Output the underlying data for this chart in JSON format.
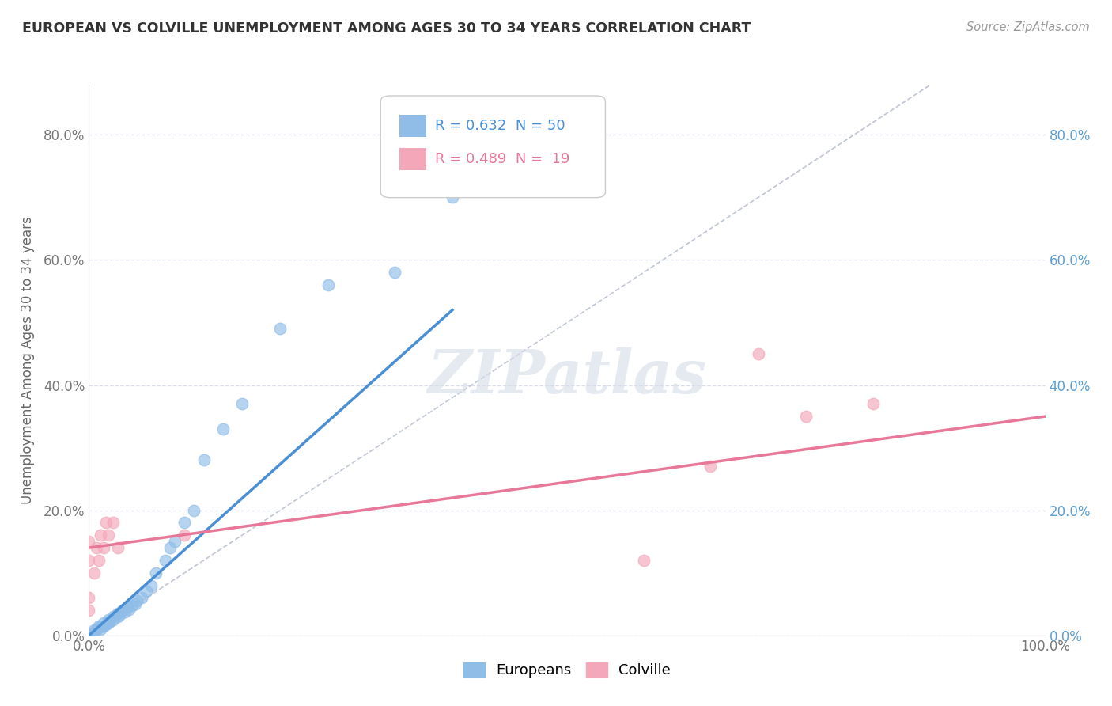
{
  "title": "EUROPEAN VS COLVILLE UNEMPLOYMENT AMONG AGES 30 TO 34 YEARS CORRELATION CHART",
  "source": "Source: ZipAtlas.com",
  "ylabel": "Unemployment Among Ages 30 to 34 years",
  "xlim": [
    0,
    1.0
  ],
  "ylim": [
    0,
    0.88
  ],
  "yticks": [
    0.0,
    0.2,
    0.4,
    0.6,
    0.8
  ],
  "ytick_labels": [
    "0.0%",
    "20.0%",
    "40.0%",
    "60.0%",
    "80.0%"
  ],
  "xtick_labels_left": "0.0%",
  "xtick_labels_right": "100.0%",
  "europeans_color": "#8fbde8",
  "colville_color": "#f4a7b9",
  "trendline_european_color": "#4a8fd4",
  "trendline_colville_color": "#e8789a",
  "diag_line_color": "#b0b8c8",
  "background_color": "#ffffff",
  "grid_color": "#d8dde8",
  "right_tick_color": "#5a9fd4",
  "watermark": "ZIPatlas",
  "europeans_x": [
    0.0,
    0.0,
    0.0,
    0.0,
    0.0,
    0.0,
    0.0,
    0.0,
    0.0,
    0.0,
    0.005,
    0.005,
    0.008,
    0.01,
    0.01,
    0.012,
    0.015,
    0.015,
    0.018,
    0.02,
    0.02,
    0.022,
    0.025,
    0.025,
    0.03,
    0.03,
    0.032,
    0.035,
    0.038,
    0.04,
    0.042,
    0.045,
    0.048,
    0.05,
    0.055,
    0.06,
    0.065,
    0.07,
    0.08,
    0.085,
    0.09,
    0.1,
    0.11,
    0.12,
    0.14,
    0.16,
    0.2,
    0.25,
    0.32,
    0.38
  ],
  "europeans_y": [
    0.0,
    0.0,
    0.0,
    0.0,
    0.0,
    0.0,
    0.0,
    0.0,
    0.0,
    0.002,
    0.005,
    0.008,
    0.01,
    0.012,
    0.015,
    0.01,
    0.015,
    0.02,
    0.018,
    0.02,
    0.025,
    0.022,
    0.025,
    0.03,
    0.03,
    0.035,
    0.032,
    0.04,
    0.038,
    0.045,
    0.042,
    0.048,
    0.05,
    0.055,
    0.06,
    0.07,
    0.08,
    0.1,
    0.12,
    0.14,
    0.15,
    0.18,
    0.2,
    0.28,
    0.33,
    0.37,
    0.49,
    0.56,
    0.58,
    0.7
  ],
  "colville_x": [
    0.0,
    0.0,
    0.0,
    0.0,
    0.005,
    0.008,
    0.01,
    0.012,
    0.015,
    0.018,
    0.02,
    0.025,
    0.03,
    0.1,
    0.58,
    0.65,
    0.7,
    0.75,
    0.82
  ],
  "colville_y": [
    0.04,
    0.06,
    0.12,
    0.15,
    0.1,
    0.14,
    0.12,
    0.16,
    0.14,
    0.18,
    0.16,
    0.18,
    0.14,
    0.16,
    0.12,
    0.27,
    0.45,
    0.35,
    0.37
  ],
  "trendline_e_x0": 0.0,
  "trendline_e_y0": 0.0,
  "trendline_e_x1": 0.38,
  "trendline_e_y1": 0.52,
  "trendline_c_x0": 0.0,
  "trendline_c_y0": 0.14,
  "trendline_c_x1": 1.0,
  "trendline_c_y1": 0.35
}
